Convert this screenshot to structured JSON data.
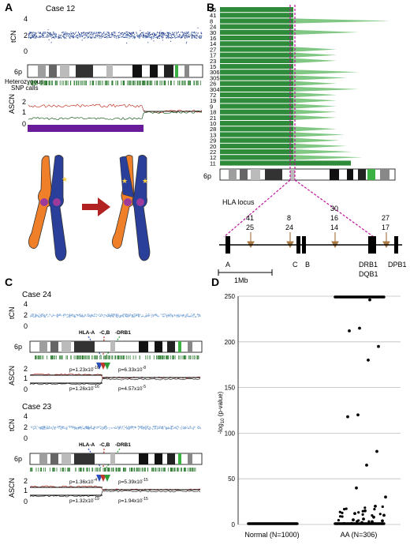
{
  "panels": {
    "A": {
      "letter": "A",
      "case_title": "Case 12",
      "tcn_label": "tCN",
      "tcn_ticks": [
        "4",
        "2",
        "0"
      ],
      "chrom_label": "6p",
      "het_label": "Heterozygous",
      "snp_label": "SNP calls",
      "ascn_label": "ASCN",
      "ascn_ticks": [
        "2",
        "1",
        "0"
      ],
      "colors": {
        "tcn_points": "#1f3b8a",
        "ascn_red": "#c0392b",
        "ascn_green": "#2e7d32",
        "bar": "#6a1b9a",
        "chrom_orange": "#f07f2a",
        "chrom_blue": "#2a3f9a",
        "centromere": "#9c3b9c",
        "arrow": "#b22222",
        "star": "#ffd23f"
      }
    },
    "B": {
      "letter": "B",
      "case_ids": [
        "25",
        "41",
        "8",
        "24",
        "30",
        "16",
        "14",
        "27",
        "17",
        "23",
        "15",
        "306",
        "305",
        "26",
        "304",
        "72",
        "19",
        "9",
        "18",
        "21",
        "10",
        "28",
        "13",
        "29",
        "20",
        "22",
        "12",
        "11"
      ],
      "chrom_label": "6p",
      "hla_title": "HLA locus",
      "bar_color": "#2e8b3a",
      "dash_color": "#c0139c",
      "arrow_groups": [
        {
          "labels": [
            "41",
            "25"
          ]
        },
        {
          "labels": [
            "8",
            "24"
          ]
        },
        {
          "labels": [
            "30",
            "16",
            "14"
          ]
        },
        {
          "labels": [
            "27",
            "17"
          ]
        }
      ],
      "genes": [
        "A",
        "C",
        "B",
        "DRB1",
        "DQB1",
        "DPB1"
      ],
      "scale_label": "1Mb"
    },
    "C": {
      "letter": "C",
      "cases": [
        {
          "title": "Case 24",
          "tcn_label": "tCN",
          "tcn_ticks": [
            "4",
            "2",
            "0"
          ],
          "hla_labels": [
            "HLA-A",
            "-C,B",
            "-DRB1"
          ],
          "chrom_label": "6p",
          "ascn_label": "ASCN",
          "ascn_ticks": [
            "2",
            "1",
            "0"
          ],
          "pvals": [
            "p=1.23x10",
            "-16",
            "p=6.33x10",
            "-8",
            "p=1.26x10",
            "-16",
            "p=4.57x10",
            "-5"
          ]
        },
        {
          "title": "Case 23",
          "tcn_label": "tCN",
          "tcn_ticks": [
            "4",
            "2",
            "0"
          ],
          "hla_labels": [
            "HLA-A",
            "-C,B",
            "-DRB1"
          ],
          "chrom_label": "6p",
          "ascn_label": "ASCN",
          "ascn_ticks": [
            "2",
            "1",
            "0"
          ],
          "pvals": [
            "p=1.36x10",
            "-4",
            "p=5.39x10",
            "-15",
            "p=1.32x10",
            "-19",
            "p=1.94x10",
            "-15"
          ]
        }
      ]
    },
    "D": {
      "letter": "D"
    }
  },
  "chart_data": {
    "type": "scatter",
    "title": "",
    "ylabel": "-log10 (p-value)",
    "ylabel_main": "-log",
    "ylabel_sub": "10",
    "ylabel_rest": " (p-value)",
    "ylim": [
      0,
      250
    ],
    "yticks": [
      "250",
      "200",
      "150",
      "100",
      "50",
      "0"
    ],
    "categories": [
      "Normal (N=1000)",
      "AA (N=306)"
    ],
    "grid": true,
    "series": [
      {
        "category": "Normal (N=1000)",
        "values": [
          0
        ]
      },
      {
        "category": "AA (N=306)",
        "values": [
          250,
          250,
          250,
          250,
          250,
          250,
          250,
          250,
          250,
          250,
          250,
          250,
          250,
          250,
          250,
          250,
          250,
          246,
          215,
          212,
          195,
          180,
          120,
          118,
          80,
          65,
          40,
          30,
          20,
          15,
          12,
          10,
          8,
          6,
          5,
          4,
          3,
          2,
          1,
          0
        ]
      }
    ]
  }
}
